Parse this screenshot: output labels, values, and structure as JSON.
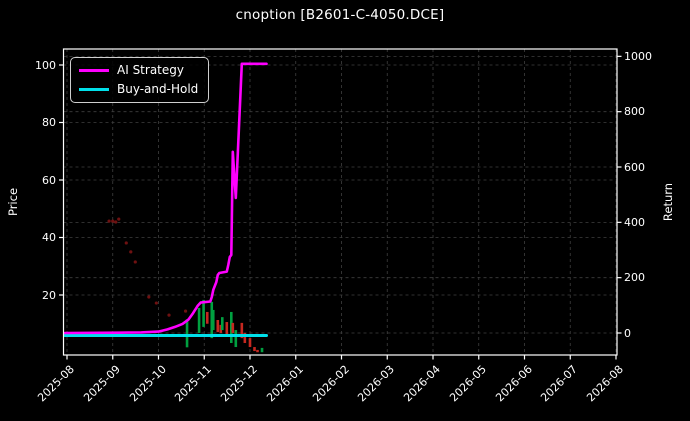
{
  "chart_data": {
    "type": "line+candlestick",
    "title": "cnoption [B2601-C-4050.DCE]",
    "background_color": "#000000",
    "text_color": "#ffffff",
    "grid_color": "#3f3f3f",
    "grid": "on",
    "x_axis": {
      "tick_labels": [
        "2025-08",
        "2025-09",
        "2025-10",
        "2025-11",
        "2025-12",
        "2026-01",
        "2026-02",
        "2026-03",
        "2026-04",
        "2026-05",
        "2026-06",
        "2026-07",
        "2026-08"
      ],
      "label_rotation_deg": 45
    },
    "y_left": {
      "label": "Price",
      "tick_labels": [
        "20",
        "40",
        "60",
        "80",
        "100"
      ],
      "tick_values": [
        20,
        40,
        60,
        80,
        100
      ],
      "lim": [
        -1,
        106
      ]
    },
    "y_right": {
      "label": "Return",
      "tick_labels": [
        "0",
        "200",
        "400",
        "600",
        "800",
        "1000"
      ],
      "tick_values": [
        0,
        200,
        400,
        600,
        800,
        1000
      ],
      "lim": [
        -26,
        1027
      ]
    },
    "legend": {
      "position": "upper-left",
      "entries": [
        {
          "label": "AI Strategy",
          "color": "#ff00ff"
        },
        {
          "label": "Buy-and-Hold",
          "color": "#00e0ea"
        }
      ]
    },
    "series": [
      {
        "name": "AI Strategy",
        "axis": "right",
        "color": "#ff00ff",
        "line_width": 2.6,
        "points": [
          [
            "2025-07-30",
            0
          ],
          [
            "2025-09-05",
            1
          ],
          [
            "2025-09-20",
            2
          ],
          [
            "2025-10-01",
            5
          ],
          [
            "2025-10-07",
            13
          ],
          [
            "2025-10-12",
            22
          ],
          [
            "2025-10-17",
            33
          ],
          [
            "2025-10-21",
            49
          ],
          [
            "2025-10-24",
            72
          ],
          [
            "2025-10-27",
            98
          ],
          [
            "2025-10-29",
            110
          ],
          [
            "2025-11-05",
            114
          ],
          [
            "2025-11-06",
            130
          ],
          [
            "2025-11-07",
            156
          ],
          [
            "2025-11-09",
            184
          ],
          [
            "2025-11-10",
            210
          ],
          [
            "2025-11-11",
            217
          ],
          [
            "2025-11-16",
            222
          ],
          [
            "2025-11-17",
            246
          ],
          [
            "2025-11-18",
            275
          ],
          [
            "2025-11-19",
            282
          ],
          [
            "2025-11-20",
            655
          ],
          [
            "2025-11-22",
            488
          ],
          [
            "2025-11-26",
            973
          ],
          [
            "2025-12-12",
            973
          ]
        ]
      },
      {
        "name": "Buy-and-Hold",
        "axis": "right",
        "color": "#00e0ea",
        "line_width": 3,
        "points": [
          [
            "2025-07-30",
            -9
          ],
          [
            "2025-12-12",
            -9
          ]
        ]
      }
    ],
    "candles": {
      "axis": "left",
      "up_color": "#00a040",
      "down_color": "#c62820",
      "items": [
        [
          "2025-10-20",
          11.5,
          1.8,
          "up"
        ],
        [
          "2025-10-28",
          15.5,
          6.8,
          "up"
        ],
        [
          "2025-10-31",
          18.3,
          8.9,
          "up"
        ],
        [
          "2025-11-03",
          14.1,
          10.0,
          "down"
        ],
        [
          "2025-11-06",
          17.6,
          5.0,
          "up"
        ],
        [
          "2025-11-07",
          14.8,
          7.8,
          "up"
        ],
        [
          "2025-11-10",
          11.3,
          7.1,
          "down"
        ],
        [
          "2025-11-12",
          9.6,
          6.8,
          "down"
        ],
        [
          "2025-11-13",
          12.3,
          7.8,
          "up"
        ],
        [
          "2025-11-16",
          10.6,
          6.1,
          "down"
        ],
        [
          "2025-11-19",
          14.1,
          3.3,
          "up"
        ],
        [
          "2025-11-20",
          10.3,
          6.8,
          "down"
        ],
        [
          "2025-11-22",
          7.8,
          1.9,
          "up"
        ],
        [
          "2025-11-26",
          10.3,
          5.0,
          "down"
        ],
        [
          "2025-11-28",
          6.8,
          3.3,
          "down"
        ],
        [
          "2025-12-01",
          5.0,
          1.9,
          "down"
        ],
        [
          "2025-12-04",
          1.9,
          0.5,
          "down"
        ],
        [
          "2025-12-06",
          0.9,
          0.1,
          "down"
        ],
        [
          "2025-12-09",
          1.6,
          0.1,
          "up"
        ]
      ]
    },
    "markers": {
      "axis": "left",
      "color": "#8b1515",
      "points": [
        [
          "2025-08-29",
          45.7
        ],
        [
          "2025-09-01",
          45.7
        ],
        [
          "2025-09-03",
          45.4
        ],
        [
          "2025-09-05",
          46.4
        ],
        [
          "2025-09-10",
          38.1
        ],
        [
          "2025-09-13",
          35.0
        ],
        [
          "2025-09-16",
          31.5
        ],
        [
          "2025-09-25",
          19.3
        ],
        [
          "2025-09-30",
          17.2
        ],
        [
          "2025-10-08",
          13.0
        ],
        [
          "2025-10-19",
          14.4
        ]
      ]
    }
  }
}
